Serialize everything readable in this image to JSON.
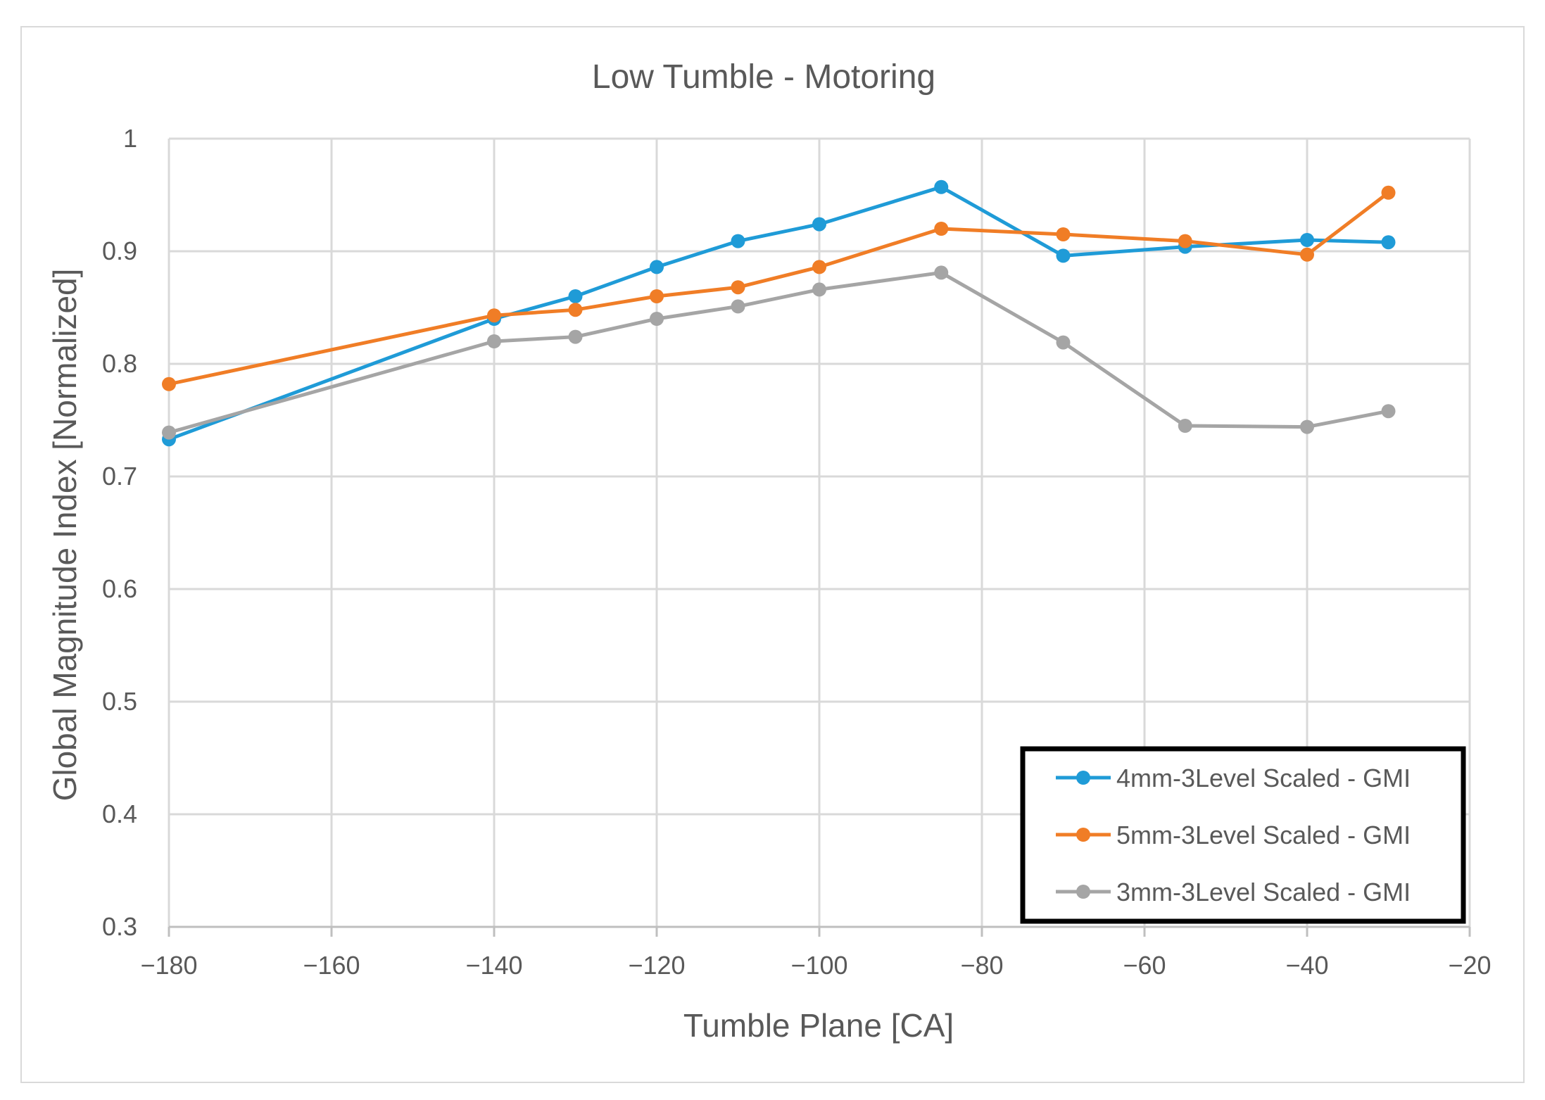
{
  "chart_data": {
    "type": "line",
    "title": "Low Tumble - Motoring",
    "xlabel": "Tumble Plane [CA]",
    "ylabel": "Global Magnitude Index [Normalized]",
    "xlim": [
      -180,
      -20
    ],
    "ylim": [
      0.3,
      1.0
    ],
    "x_ticks": [
      -180,
      -160,
      -140,
      -120,
      -100,
      -80,
      -60,
      -40,
      -20
    ],
    "x_tick_labels": [
      "−180",
      "−160",
      "−140",
      "−120",
      "−100",
      "−80",
      "−60",
      "−40",
      "−20"
    ],
    "y_ticks": [
      0.3,
      0.4,
      0.5,
      0.6,
      0.7,
      0.8,
      0.9,
      1.0
    ],
    "y_tick_labels": [
      "0.3",
      "0.4",
      "0.5",
      "0.6",
      "0.7",
      "0.8",
      "0.9",
      "1"
    ],
    "grid": true,
    "legend_position": "bottom-right",
    "x": [
      -180,
      -140,
      -130,
      -120,
      -110,
      -100,
      -85,
      -70,
      -55,
      -40,
      -30
    ],
    "series": [
      {
        "name": "4mm-3Level Scaled - GMI",
        "color": "#1f9bd7",
        "values": [
          0.733,
          0.84,
          0.86,
          0.886,
          0.909,
          0.924,
          0.957,
          0.896,
          0.904,
          0.91,
          0.908
        ]
      },
      {
        "name": "5mm-3Level Scaled - GMI",
        "color": "#f07d26",
        "values": [
          0.782,
          0.843,
          0.848,
          0.86,
          0.868,
          0.886,
          0.92,
          0.915,
          0.909,
          0.897,
          0.952
        ]
      },
      {
        "name": "3mm-3Level Scaled - GMI",
        "color": "#a5a5a5",
        "values": [
          0.739,
          0.82,
          0.824,
          0.84,
          0.851,
          0.866,
          0.881,
          0.819,
          0.745,
          0.744,
          0.758
        ]
      }
    ]
  }
}
